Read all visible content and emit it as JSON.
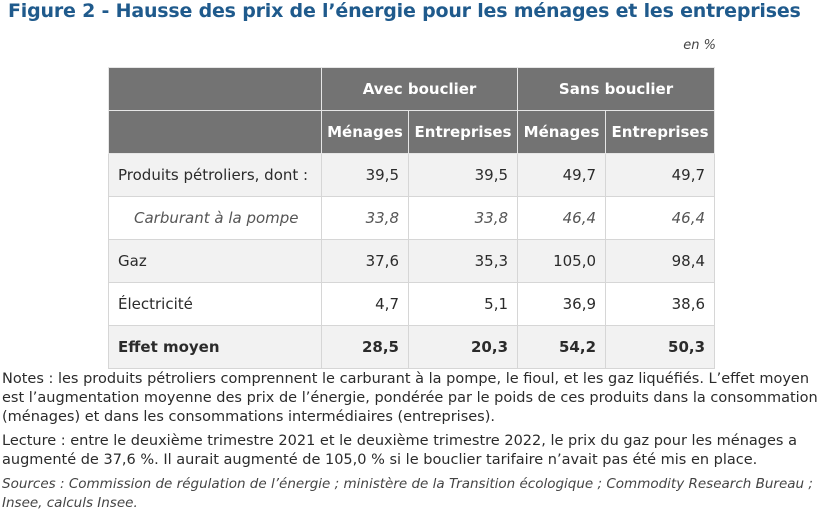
{
  "title": "Figure 2 - Hausse des prix de l’énergie pour les ménages et les entreprises",
  "unit": "en %",
  "table": {
    "group_headers": [
      "Avec bouclier",
      "Sans bouclier"
    ],
    "sub_headers": [
      "Ménages",
      "Entreprises",
      "Ménages",
      "Entreprises"
    ],
    "rows": [
      {
        "label": "Produits pétroliers, dont :",
        "values": [
          "39,5",
          "39,5",
          "49,7",
          "49,7"
        ]
      },
      {
        "label": "Carburant à la pompe",
        "values": [
          "33,8",
          "33,8",
          "46,4",
          "46,4"
        ]
      },
      {
        "label": "Gaz",
        "values": [
          "37,6",
          "35,3",
          "105,0",
          "98,4"
        ]
      },
      {
        "label": "Électricité",
        "values": [
          "4,7",
          "5,1",
          "36,9",
          "38,6"
        ]
      },
      {
        "label": "Effet moyen",
        "values": [
          "28,5",
          "20,3",
          "54,2",
          "50,3"
        ]
      }
    ]
  },
  "notes": "Notes : les produits pétroliers comprennent le carburant à la pompe, le fioul, et les gaz liquéfiés. L’effet moyen est l’augmentation moyenne des prix de l’énergie, pondérée par le poids de ces produits dans la consommation (ménages) et dans les consommations intermédiaires (entreprises).",
  "reading": "Lecture : entre le deuxième trimestre 2021 et le deuxième trimestre 2022, le prix du gaz pour les ménages a augmenté de 37,6 %. Il aurait augmenté de 105,0 % si le bouclier tarifaire n’avait pas été mis en place.",
  "sources": "Sources : Commission de régulation de l’énergie ; ministère de la Transition écologique ; Commodity Research Bureau ; Insee, calculs Insee."
}
